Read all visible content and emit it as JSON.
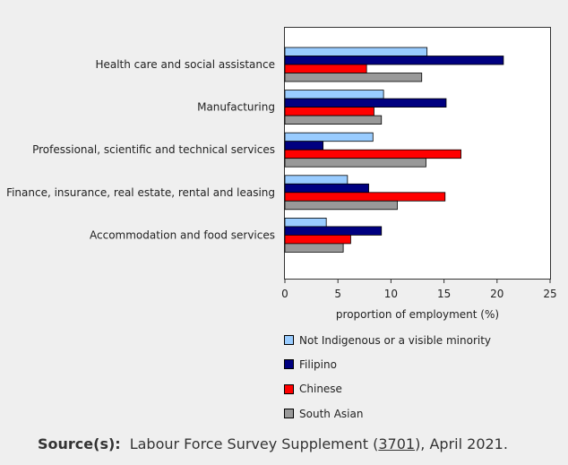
{
  "chart_data": {
    "type": "bar",
    "orientation": "horizontal",
    "categories": [
      "Health care and social assistance",
      "Manufacturing",
      "Professional, scientific and technical services",
      "Finance, insurance, real estate, rental and leasing",
      "Accommodation and food services"
    ],
    "series": [
      {
        "name": "Not Indigenous or a visible minority",
        "color": "#99ccff",
        "values": [
          13.4,
          9.3,
          8.3,
          5.9,
          3.9
        ]
      },
      {
        "name": "Filipino",
        "color": "#000080",
        "values": [
          20.6,
          15.2,
          3.6,
          7.9,
          9.1
        ]
      },
      {
        "name": "Chinese",
        "color": "#ff0000",
        "values": [
          7.7,
          8.4,
          16.6,
          15.1,
          6.2
        ]
      },
      {
        "name": "South Asian",
        "color": "#999999",
        "values": [
          12.9,
          9.1,
          13.3,
          10.6,
          5.5
        ]
      }
    ],
    "xlabel": "proportion of employment (%)",
    "xlim": [
      0,
      25
    ],
    "xticks": [
      "0",
      "5",
      "10",
      "15",
      "20",
      "25"
    ],
    "grid": false,
    "legend_position": "bottom"
  },
  "source": {
    "label": "Source(s):",
    "text_before": "Labour Force Survey Supplement (",
    "code": "3701",
    "text_after": "), April 2021."
  }
}
